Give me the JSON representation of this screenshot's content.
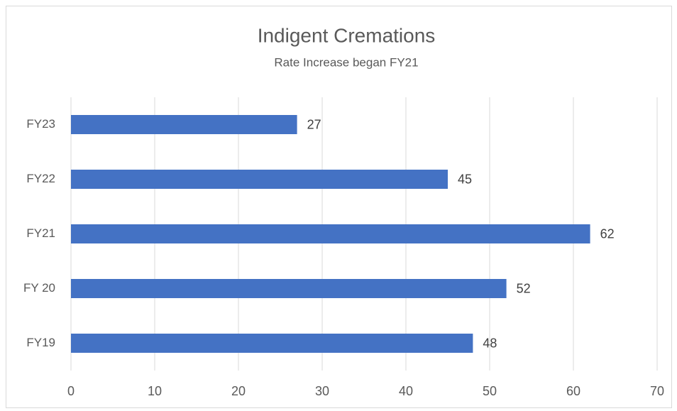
{
  "chart_data": {
    "type": "bar",
    "orientation": "horizontal",
    "title": "Indigent Cremations",
    "subtitle": "Rate  Increase began FY21",
    "categories": [
      "FY19",
      "FY 20",
      "FY21",
      "FY22",
      "FY23"
    ],
    "values": [
      48,
      52,
      62,
      45,
      27
    ],
    "color": "#4472c4",
    "xlim": [
      0,
      70
    ],
    "xticks": [
      0,
      10,
      20,
      30,
      40,
      50,
      60,
      70
    ],
    "grid": true
  }
}
